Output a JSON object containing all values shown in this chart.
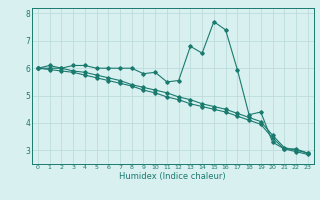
{
  "xlabel": "Humidex (Indice chaleur)",
  "x": [
    0,
    1,
    2,
    3,
    4,
    5,
    6,
    7,
    8,
    9,
    10,
    11,
    12,
    13,
    14,
    15,
    16,
    17,
    18,
    19,
    20,
    21,
    22,
    23
  ],
  "line1": [
    6.0,
    6.1,
    6.0,
    6.1,
    6.1,
    6.0,
    6.0,
    6.0,
    6.0,
    5.8,
    5.85,
    5.5,
    5.55,
    6.8,
    6.55,
    7.7,
    7.4,
    5.95,
    4.3,
    4.4,
    3.3,
    3.05,
    3.05,
    2.9
  ],
  "line2": [
    6.0,
    6.0,
    6.0,
    5.9,
    5.85,
    5.75,
    5.65,
    5.55,
    5.4,
    5.3,
    5.2,
    5.1,
    4.95,
    4.85,
    4.7,
    4.6,
    4.5,
    4.35,
    4.2,
    4.05,
    3.55,
    3.1,
    3.0,
    2.9
  ],
  "line3": [
    6.0,
    5.95,
    5.9,
    5.85,
    5.75,
    5.65,
    5.55,
    5.45,
    5.35,
    5.2,
    5.1,
    4.95,
    4.85,
    4.7,
    4.6,
    4.5,
    4.4,
    4.25,
    4.1,
    3.95,
    3.45,
    3.05,
    2.95,
    2.85
  ],
  "line_color": "#1a7a6e",
  "bg_color": "#d8f0f0",
  "grid_color": "#b8d8d8",
  "ylim": [
    2.5,
    8.2
  ],
  "xlim": [
    -0.5,
    23.5
  ],
  "yticks": [
    3,
    4,
    5,
    6,
    7,
    8
  ],
  "xtick_fontsize": 4.5,
  "ytick_fontsize": 5.5,
  "xlabel_fontsize": 6.0
}
